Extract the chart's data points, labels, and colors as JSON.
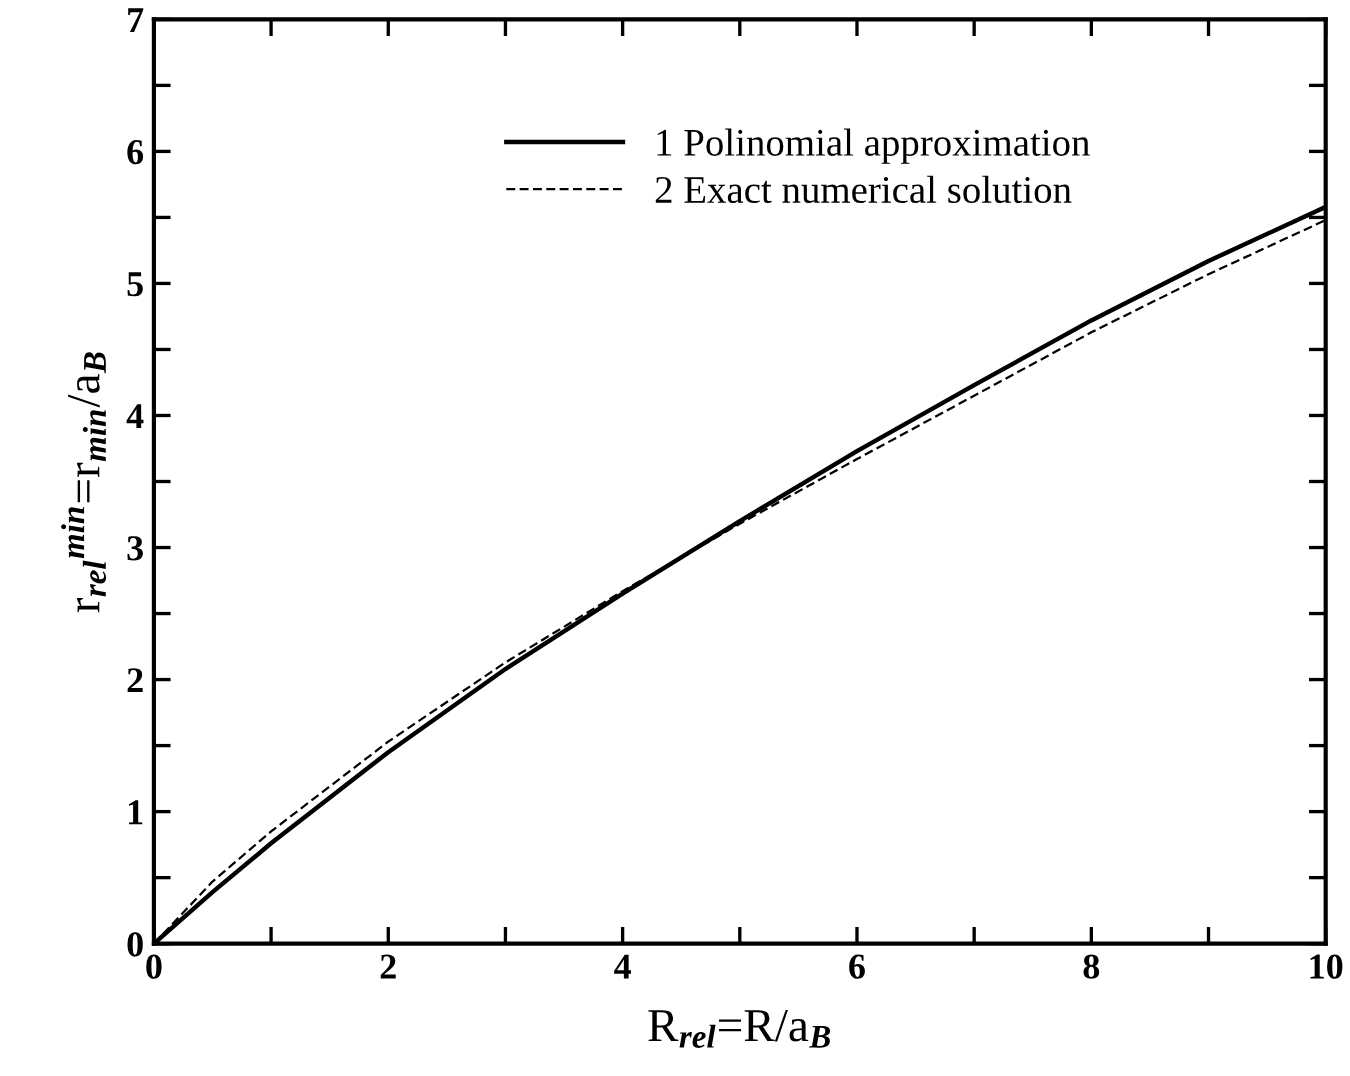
{
  "chart_data": {
    "type": "line",
    "xlabel": "R$_{rel}$=R/a$_{B}$",
    "ylabel": "r$_{rel}$$^{min}$=r$_{min}$/a$_{B}$",
    "xlim": [
      0,
      10
    ],
    "ylim": [
      0,
      7
    ],
    "xticks": [
      0,
      {
        "value": 1,
        "label": null
      },
      2,
      {
        "value": 3,
        "label": null
      },
      4,
      {
        "value": 5,
        "label": null
      },
      6,
      {
        "value": 7,
        "label": null
      },
      8,
      {
        "value": 9,
        "label": null
      },
      10
    ],
    "yticks": [
      0,
      {
        "value": 0.5,
        "label": null
      },
      1,
      {
        "value": 1.5,
        "label": null
      },
      2,
      {
        "value": 2.5,
        "label": null
      },
      3,
      {
        "value": 3.5,
        "label": null
      },
      4,
      {
        "value": 4.5,
        "label": null
      },
      5,
      {
        "value": 5.5,
        "label": null
      },
      6,
      {
        "value": 6.5,
        "label": null
      },
      7
    ],
    "grid": false,
    "legend": "top",
    "marker": "none",
    "series": [
      {
        "name": "1 Polinomial approximation",
        "color": "#000000",
        "line_style": "solid",
        "x": [
          0,
          0.5,
          1,
          2,
          3,
          4,
          5,
          6,
          7,
          8,
          9,
          10
        ],
        "values": [
          0,
          0.39,
          0.76,
          1.45,
          2.08,
          2.65,
          3.2,
          3.73,
          4.23,
          4.72,
          5.17,
          5.58
        ]
      },
      {
        "name": "2 Exact numerical solution",
        "color": "#000000",
        "line_style": "dashed",
        "x": [
          0,
          0.5,
          1,
          2,
          3,
          4,
          5,
          6,
          7,
          8,
          9,
          10
        ],
        "values": [
          0,
          0.47,
          0.85,
          1.53,
          2.13,
          2.67,
          3.18,
          3.67,
          4.15,
          4.63,
          5.07,
          5.48
        ]
      }
    ]
  }
}
